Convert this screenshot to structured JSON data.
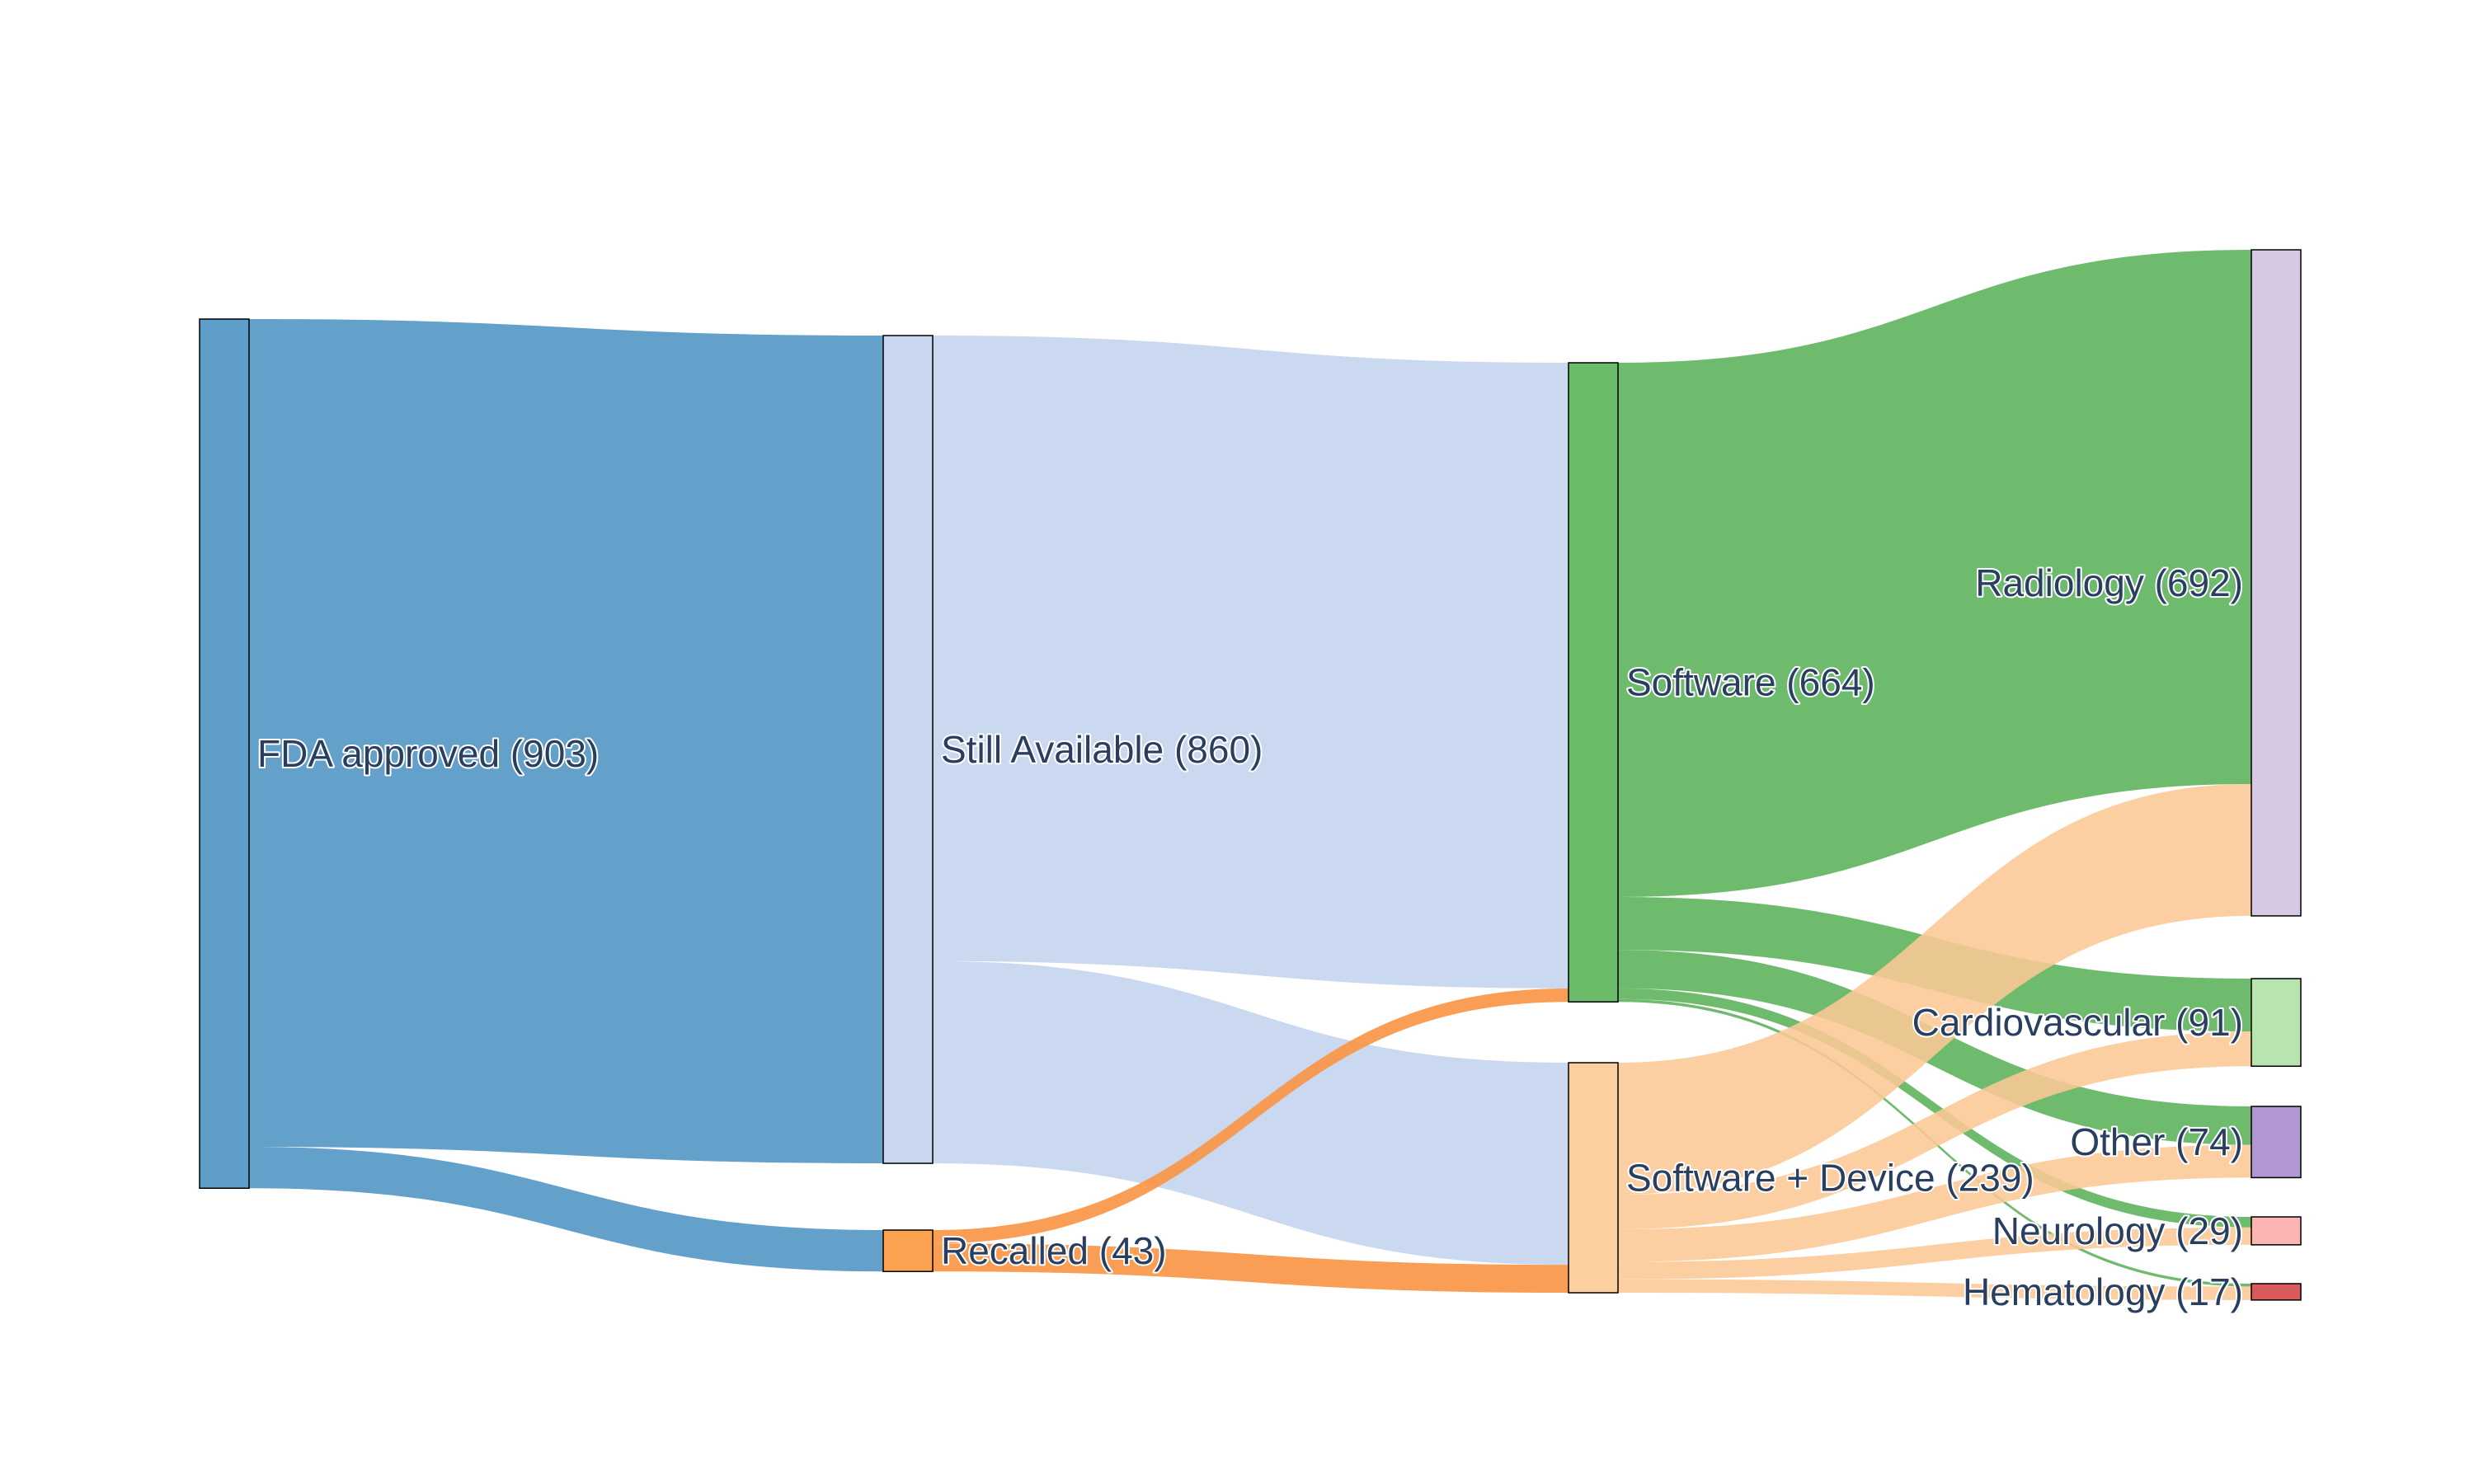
{
  "chart_data": {
    "type": "sankey",
    "nodes": [
      {
        "id": "fda",
        "label": "FDA approved (903)",
        "value": 903,
        "color": "#5f9ec8"
      },
      {
        "id": "still",
        "label": "Still Available (860)",
        "value": 860,
        "color": "#c8d7ef"
      },
      {
        "id": "recalled",
        "label": "Recalled (43)",
        "value": 43,
        "color": "#fba250"
      },
      {
        "id": "software",
        "label": "Software (664)",
        "value": 664,
        "color": "#6abc6a"
      },
      {
        "id": "swdev",
        "label": "Software + Device (239)",
        "value": 239,
        "color": "#fccfa0"
      },
      {
        "id": "radiology",
        "label": "Radiology (692)",
        "value": 692,
        "color": "#d5c9e3"
      },
      {
        "id": "cardio",
        "label": "Cardiovascular (91)",
        "value": 91,
        "color": "#b8e5ad"
      },
      {
        "id": "other",
        "label": "Other (74)",
        "value": 74,
        "color": "#b096d2"
      },
      {
        "id": "neuro",
        "label": "Neurology (29)",
        "value": 29,
        "color": "#fdb4b4"
      },
      {
        "id": "hema",
        "label": "Hematology (17)",
        "value": 17,
        "color": "#d85a5a"
      }
    ],
    "links": [
      {
        "source": "fda",
        "target": "still",
        "value": 860
      },
      {
        "source": "fda",
        "target": "recalled",
        "value": 43
      },
      {
        "source": "still",
        "target": "software",
        "value": 650
      },
      {
        "source": "still",
        "target": "swdev",
        "value": 210
      },
      {
        "source": "recalled",
        "target": "software",
        "value": 14
      },
      {
        "source": "recalled",
        "target": "swdev",
        "value": 29
      },
      {
        "source": "software",
        "target": "radiology",
        "value": 555
      },
      {
        "source": "software",
        "target": "cardio",
        "value": 55
      },
      {
        "source": "software",
        "target": "other",
        "value": 40
      },
      {
        "source": "software",
        "target": "neuro",
        "value": 11
      },
      {
        "source": "software",
        "target": "hema",
        "value": 3
      },
      {
        "source": "swdev",
        "target": "radiology",
        "value": 137
      },
      {
        "source": "swdev",
        "target": "cardio",
        "value": 36
      },
      {
        "source": "swdev",
        "target": "other",
        "value": 34
      },
      {
        "source": "swdev",
        "target": "neuro",
        "value": 18
      },
      {
        "source": "swdev",
        "target": "hema",
        "value": 14
      }
    ]
  }
}
